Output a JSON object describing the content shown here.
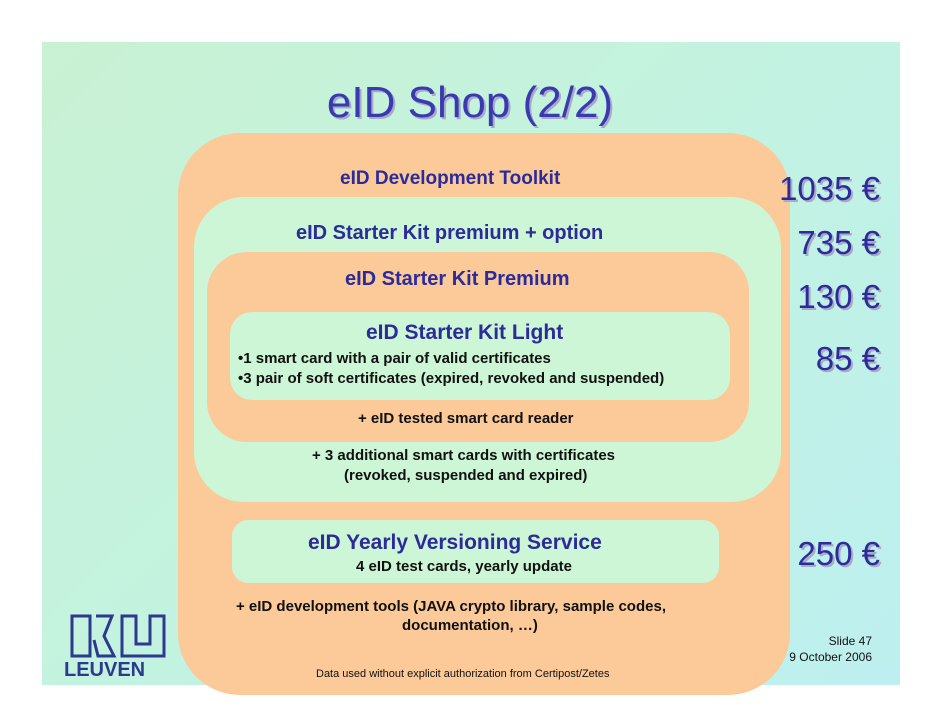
{
  "slide": {
    "title": "eID Shop (2/2)",
    "tiers": {
      "toolkit": "eID Development Toolkit",
      "premium_option": "eID Starter Kit premium + option",
      "premium": "eID Starter Kit Premium",
      "light": "eID Starter Kit Light",
      "light_item1": "•1 smart card with a pair of valid certificates",
      "light_item2": "•3 pair of soft certificates (expired, revoked and suspended)",
      "reader": "+ eID tested smart card reader",
      "additional_line1": "+ 3 additional smart cards with certificates",
      "additional_line2": "(revoked, suspended and expired)",
      "versioning": "eID Yearly Versioning Service",
      "versioning_sub": "4 eID test cards, yearly update",
      "devtools_line1": "+ eID development tools (JAVA crypto  library, sample codes,",
      "devtools_line2": "documentation, …)"
    },
    "prices": {
      "toolkit": "1035 €",
      "premium_option": "735 €",
      "premium": "130 €",
      "light": "85 €",
      "versioning": "250 €"
    },
    "logo_text": "LEUVEN",
    "slide_number": "Slide 47",
    "date": "9 October 2006",
    "footer": "Data used without explicit authorization from Certipost/Zetes"
  }
}
